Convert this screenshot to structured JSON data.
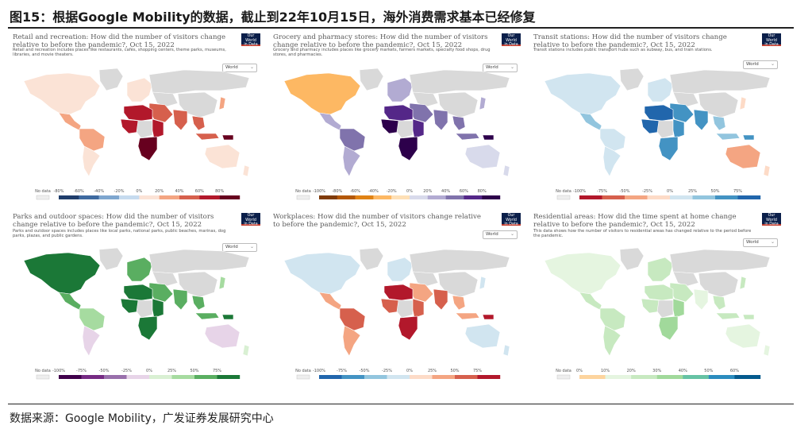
{
  "figure_title": "图15：根据Google Mobility的数据，截止到22年10月15日，海外消费需求基本已经修复",
  "source": "数据来源：Google Mobility，广发证券发展研究中心",
  "owid_label": [
    "Our World",
    "in Data"
  ],
  "selector_value": "World",
  "no_data_label": "No data",
  "colors": {
    "land_gray": "#d9d9d9",
    "no_data": "#eeeeee",
    "map_stroke": "#ffffff",
    "logo": "#0b1f4a",
    "logo_accent": "#c0392b"
  },
  "panels": [
    {
      "id": "retail",
      "title": "Retail and recreation: How did the number of visitors change relative to before the pandemic?, Oct 15, 2022",
      "subtitle": "Retail and recreation includes places like restaurants, cafés, shopping centers, theme parks, museums, libraries, and movie theaters.",
      "ticks": [
        "-80%",
        "-60%",
        "-40%",
        "-20%",
        "0%",
        "20%",
        "40%",
        "60%",
        "80%"
      ],
      "palette": [
        "#1f3d6b",
        "#3e6aa0",
        "#7ea6cf",
        "#c6dbef",
        "#fbe3d6",
        "#f4a582",
        "#d6604d",
        "#b2182b",
        "#67001f"
      ],
      "regions": {
        "north_america": 4,
        "greenland": -1,
        "central_america": 5,
        "south_america_north": 5,
        "south_america_south": 4,
        "europe": 4,
        "russia": -1,
        "middle_east": 6,
        "north_africa": 7,
        "west_africa": 7,
        "central_africa": -1,
        "east_africa": 7,
        "southern_africa": 8,
        "south_asia": 6,
        "central_asia": -1,
        "china": -1,
        "southeast_asia": 6,
        "japan": 5,
        "indonesia": 6,
        "papua": 8,
        "australia": 4,
        "new_zealand": 4
      }
    },
    {
      "id": "grocery",
      "title": "Grocery and pharmacy stores: How did the number of visitors change relative to before the pandemic?, Oct 15, 2022",
      "subtitle": "Grocery and pharmacy includes places like grocery markets, farmers markets, specialty food shops, drug stores, and pharmacies.",
      "ticks": [
        "-100%",
        "-80%",
        "-60%",
        "-40%",
        "-20%",
        "0%",
        "20%",
        "40%",
        "60%",
        "80%"
      ],
      "palette": [
        "#7f3b08",
        "#b35806",
        "#e08214",
        "#fdb863",
        "#fee0b6",
        "#d8daeb",
        "#b2abd2",
        "#8073ac",
        "#542788",
        "#2d004b"
      ],
      "regions": {
        "north_america": 3,
        "greenland": -1,
        "central_america": 6,
        "south_america_north": 7,
        "south_america_south": 6,
        "europe": 6,
        "russia": -1,
        "middle_east": 7,
        "north_africa": 8,
        "west_africa": 9,
        "central_africa": -1,
        "east_africa": 8,
        "southern_africa": 9,
        "south_asia": 7,
        "central_asia": -1,
        "china": -1,
        "southeast_asia": 7,
        "japan": 6,
        "indonesia": 7,
        "papua": 9,
        "australia": 5,
        "new_zealand": 5
      }
    },
    {
      "id": "transit",
      "title": "Transit stations: How did the number of visitors change relative to before the pandemic?, Oct 15, 2022",
      "subtitle": "Transit stations includes public transport hubs such as subway, bus, and train stations.",
      "ticks": [
        "-100%",
        "-75%",
        "-50%",
        "-25%",
        "0%",
        "25%",
        "50%",
        "75%"
      ],
      "palette": [
        "#b2182b",
        "#d6604d",
        "#f4a582",
        "#fddbc7",
        "#d1e5f0",
        "#92c5de",
        "#4393c3",
        "#2166ac"
      ],
      "regions": {
        "north_america": 4,
        "greenland": -1,
        "central_america": 5,
        "south_america_north": 4,
        "south_america_south": 4,
        "europe": 4,
        "russia": -1,
        "middle_east": 6,
        "north_africa": 7,
        "west_africa": 7,
        "central_africa": -1,
        "east_africa": 6,
        "southern_africa": 6,
        "south_asia": 6,
        "central_asia": -1,
        "china": -1,
        "southeast_asia": 5,
        "japan": 3,
        "indonesia": 5,
        "papua": 6,
        "australia": 2,
        "new_zealand": 3
      }
    },
    {
      "id": "parks",
      "title": "Parks and outdoor spaces: How did the number of visitors change relative to before the pandemic?, Oct 15, 2022",
      "subtitle": "Parks and outdoor spaces includes places like local parks, national parks, public beaches, marinas, dog parks, plazas, and public gardens.",
      "ticks": [
        "-100%",
        "-75%",
        "-50%",
        "-25%",
        "0%",
        "25%",
        "50%",
        "75%"
      ],
      "palette": [
        "#40004b",
        "#762a83",
        "#9970ab",
        "#e7d4e8",
        "#d9f0d3",
        "#a6dba0",
        "#5aae61",
        "#1b7837"
      ],
      "regions": {
        "north_america": 7,
        "greenland": -1,
        "central_america": 6,
        "south_america_north": 5,
        "south_america_south": 3,
        "europe": 6,
        "russia": -1,
        "middle_east": 6,
        "north_africa": 7,
        "west_africa": 7,
        "central_africa": -1,
        "east_africa": 7,
        "southern_africa": 7,
        "south_asia": 6,
        "central_asia": -1,
        "china": -1,
        "southeast_asia": 6,
        "japan": 5,
        "indonesia": 6,
        "papua": 7,
        "australia": 3,
        "new_zealand": 4
      }
    },
    {
      "id": "workplaces",
      "title": "Workplaces: How did the number of visitors change relative to before the pandemic?, Oct 15, 2022",
      "subtitle": "",
      "ticks": [
        "-100%",
        "-75%",
        "-50%",
        "-25%",
        "0%",
        "25%",
        "50%",
        "75%"
      ],
      "palette": [
        "#2166ac",
        "#4393c3",
        "#92c5de",
        "#d1e5f0",
        "#fddbc7",
        "#f4a582",
        "#d6604d",
        "#b2182b"
      ],
      "regions": {
        "north_america": 3,
        "greenland": -1,
        "central_america": 5,
        "south_america_north": 6,
        "south_america_south": 5,
        "europe": 3,
        "russia": -1,
        "middle_east": 5,
        "north_africa": 7,
        "west_africa": 6,
        "central_africa": -1,
        "east_africa": 6,
        "southern_africa": 7,
        "south_asia": 6,
        "central_asia": -1,
        "china": -1,
        "southeast_asia": 5,
        "japan": 3,
        "indonesia": 5,
        "papua": 7,
        "australia": 3,
        "new_zealand": 3
      }
    },
    {
      "id": "residential",
      "title": "Residential areas: How did the time spent at home change relative to before the pandemic?, Oct 15, 2022",
      "subtitle": "This data shows how the number of visitors to residential areas has changed relative to the period before the pandemic.",
      "ticks": [
        "0%",
        "10%",
        "20%",
        "30%",
        "40%",
        "50%",
        "60%"
      ],
      "palette": [
        "#fdd49e",
        "#e5f5e0",
        "#c7e9c0",
        "#a1d99b",
        "#66c2a4",
        "#2b8cbe",
        "#045a8d"
      ],
      "regions": {
        "north_america": 1,
        "greenland": -1,
        "central_america": 2,
        "south_america_north": 2,
        "south_america_south": 2,
        "europe": 2,
        "russia": -1,
        "middle_east": 2,
        "north_africa": 2,
        "west_africa": 2,
        "central_africa": -1,
        "east_africa": 3,
        "southern_africa": 3,
        "south_asia": 1,
        "central_asia": -1,
        "china": -1,
        "southeast_asia": 2,
        "japan": 2,
        "indonesia": 2,
        "papua": 2,
        "australia": 1,
        "new_zealand": 1
      }
    }
  ]
}
